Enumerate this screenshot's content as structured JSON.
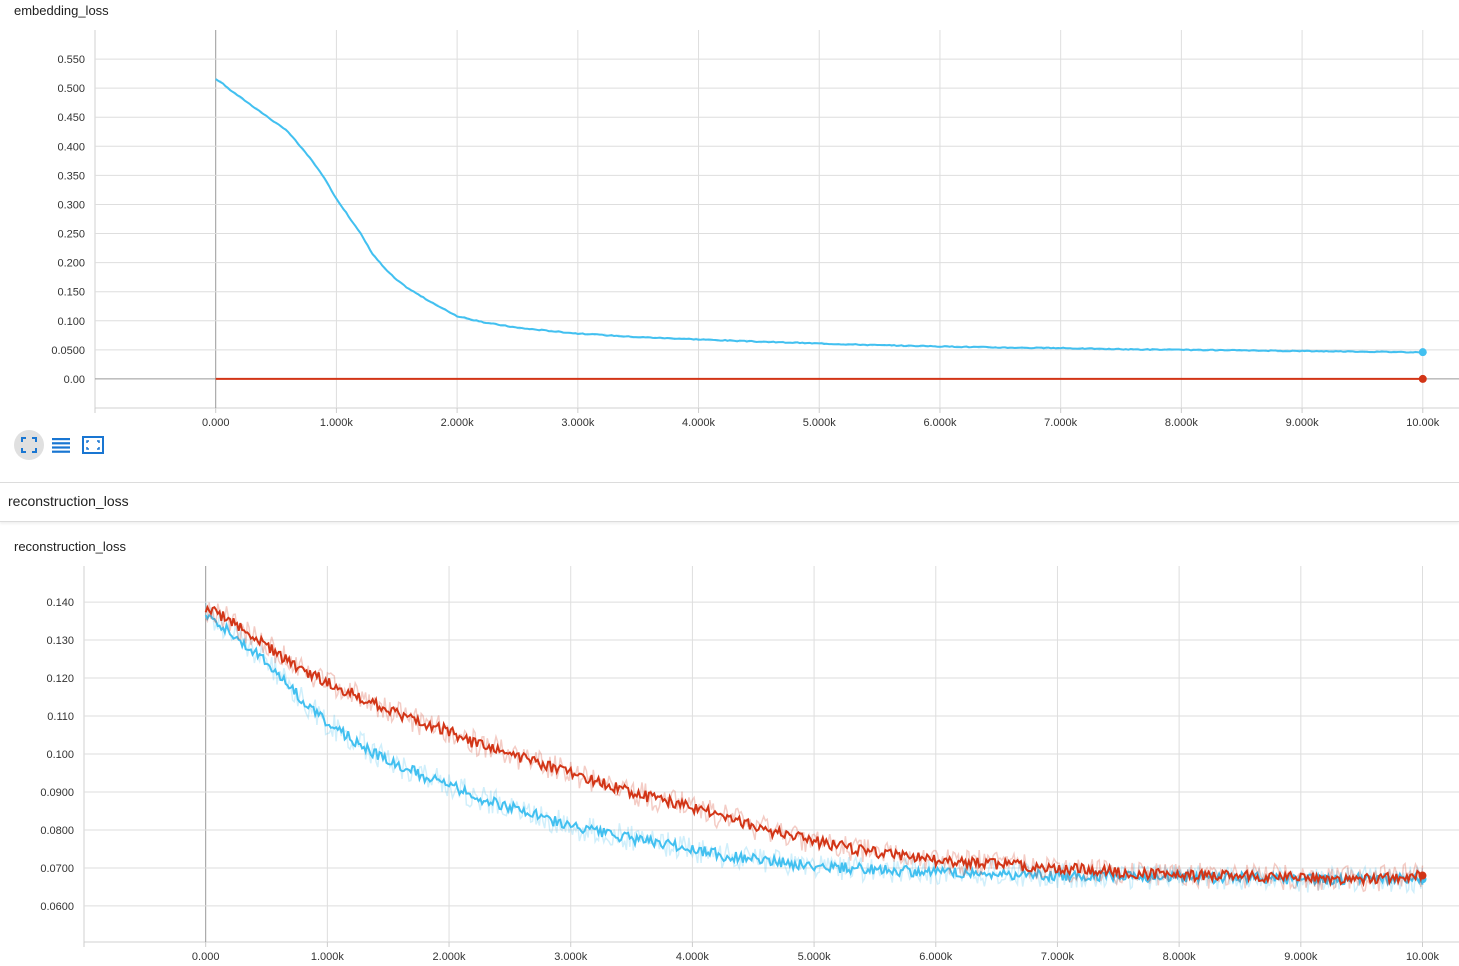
{
  "chart_data": [
    {
      "type": "line",
      "title": "embedding_loss",
      "xlabel": "",
      "ylabel": "",
      "xlim": [
        -1000,
        10300
      ],
      "ylim": [
        -0.05,
        0.6
      ],
      "x_ticks": [
        0,
        1000,
        2000,
        3000,
        4000,
        5000,
        6000,
        7000,
        8000,
        9000,
        10000
      ],
      "x_tick_labels": [
        "0.000",
        "1.000k",
        "2.000k",
        "3.000k",
        "4.000k",
        "5.000k",
        "6.000k",
        "7.000k",
        "8.000k",
        "9.000k",
        "10.00k"
      ],
      "y_ticks": [
        0,
        0.05,
        0.1,
        0.15,
        0.2,
        0.25,
        0.3,
        0.35,
        0.4,
        0.45,
        0.5,
        0.55
      ],
      "y_tick_labels": [
        "0.00",
        "0.0500",
        "0.100",
        "0.150",
        "0.200",
        "0.250",
        "0.300",
        "0.350",
        "0.400",
        "0.450",
        "0.500",
        "0.550"
      ],
      "grid": true,
      "series": [
        {
          "color": "#42c0f0",
          "x": [
            0,
            50,
            100,
            200,
            300,
            400,
            500,
            600,
            700,
            800,
            900,
            1000,
            1100,
            1200,
            1300,
            1400,
            1500,
            1600,
            1800,
            2000,
            2200,
            2500,
            3000,
            3500,
            4000,
            4500,
            5000,
            5500,
            6000,
            6500,
            7000,
            7500,
            8000,
            8500,
            9000,
            9500,
            10000
          ],
          "values": [
            0.515,
            0.51,
            0.5,
            0.485,
            0.47,
            0.455,
            0.44,
            0.425,
            0.4,
            0.375,
            0.345,
            0.31,
            0.28,
            0.25,
            0.215,
            0.19,
            0.17,
            0.155,
            0.13,
            0.108,
            0.098,
            0.088,
            0.078,
            0.072,
            0.068,
            0.064,
            0.061,
            0.058,
            0.056,
            0.054,
            0.053,
            0.051,
            0.05,
            0.049,
            0.048,
            0.047,
            0.046
          ]
        },
        {
          "color": "#d23517",
          "x": [
            0,
            10000
          ],
          "values": [
            0,
            0
          ]
        }
      ]
    },
    {
      "type": "line",
      "title": "reconstruction_loss",
      "xlabel": "",
      "ylabel": "",
      "xlim": [
        -1000,
        10300
      ],
      "ylim": [
        0.0505,
        0.1495
      ],
      "x_ticks": [
        0,
        1000,
        2000,
        3000,
        4000,
        5000,
        6000,
        7000,
        8000,
        9000,
        10000
      ],
      "x_tick_labels": [
        "0.000",
        "1.000k",
        "2.000k",
        "3.000k",
        "4.000k",
        "5.000k",
        "6.000k",
        "7.000k",
        "8.000k",
        "9.000k",
        "10.00k"
      ],
      "y_ticks": [
        0.06,
        0.07,
        0.08,
        0.09,
        0.1,
        0.11,
        0.12,
        0.13,
        0.14
      ],
      "y_tick_labels": [
        "0.0600",
        "0.0700",
        "0.0800",
        "0.0900",
        "0.100",
        "0.110",
        "0.120",
        "0.130",
        "0.140"
      ],
      "grid": true,
      "series": [
        {
          "color": "#42c0f0",
          "x": [
            0,
            100,
            200,
            400,
            600,
            800,
            1000,
            1200,
            1400,
            1600,
            1800,
            2000,
            2200,
            2500,
            2800,
            3000,
            3300,
            3600,
            4000,
            4300,
            4600,
            5000,
            5500,
            6000,
            6500,
            7000,
            7500,
            8000,
            8500,
            9000,
            9500,
            10000
          ],
          "values": [
            0.137,
            0.135,
            0.132,
            0.127,
            0.121,
            0.114,
            0.108,
            0.104,
            0.1,
            0.097,
            0.094,
            0.092,
            0.089,
            0.086,
            0.083,
            0.081,
            0.079,
            0.077,
            0.075,
            0.073,
            0.072,
            0.0705,
            0.0695,
            0.069,
            0.0685,
            0.068,
            0.068,
            0.0675,
            0.0675,
            0.067,
            0.067,
            0.067
          ]
        },
        {
          "color": "#d23517",
          "x": [
            0,
            100,
            200,
            400,
            600,
            800,
            1000,
            1200,
            1400,
            1600,
            1800,
            2000,
            2200,
            2500,
            2800,
            3000,
            3300,
            3600,
            4000,
            4300,
            4600,
            5000,
            5500,
            6000,
            6500,
            7000,
            7500,
            8000,
            8500,
            9000,
            9500,
            10000
          ],
          "values": [
            0.138,
            0.137,
            0.135,
            0.131,
            0.126,
            0.122,
            0.119,
            0.116,
            0.113,
            0.11,
            0.108,
            0.106,
            0.103,
            0.1,
            0.097,
            0.095,
            0.092,
            0.089,
            0.086,
            0.083,
            0.08,
            0.077,
            0.074,
            0.072,
            0.071,
            0.07,
            0.069,
            0.068,
            0.068,
            0.0675,
            0.067,
            0.068
          ]
        }
      ]
    }
  ],
  "section": {
    "title": "reconstruction_loss"
  },
  "toolbar": {
    "expand_icon": "fullscreen-icon",
    "data_icon": "list-icon",
    "fit_icon": "fit-domain-icon"
  }
}
